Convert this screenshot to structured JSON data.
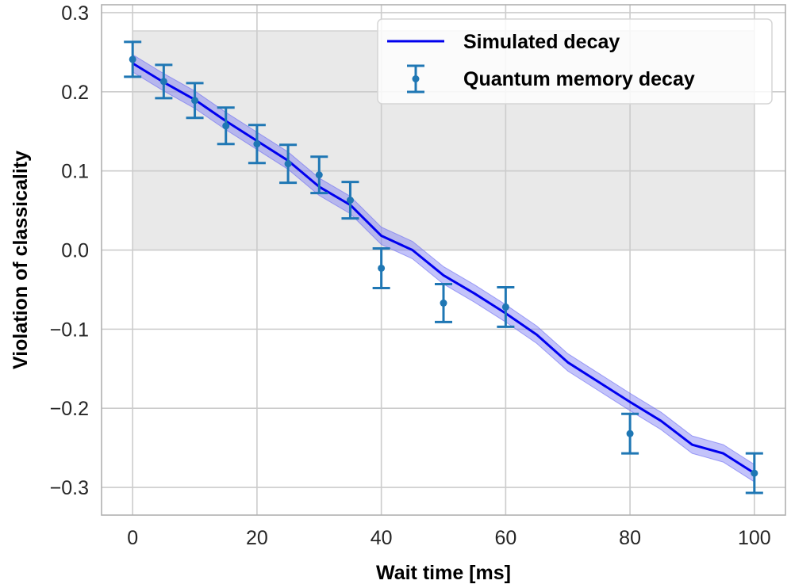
{
  "chart_data": {
    "type": "line",
    "xlabel": "Wait time [ms]",
    "ylabel": "Violation of classicality",
    "xlim": [
      -5,
      105
    ],
    "ylim": [
      -0.335,
      0.31
    ],
    "xticks": [
      0,
      20,
      40,
      60,
      80,
      100
    ],
    "xtick_labels": [
      "0",
      "20",
      "40",
      "60",
      "80",
      "100"
    ],
    "yticks": [
      0.3,
      0.2,
      0.1,
      0.0,
      -0.1,
      -0.2,
      -0.3
    ],
    "ytick_labels": [
      "0.3",
      "0.2",
      "0.1",
      "0.0",
      "−0.1",
      "−0.2",
      "−0.3"
    ],
    "grid": true,
    "legend_position": "top-right",
    "shaded_region": {
      "x": [
        0,
        100
      ],
      "y": [
        0.0,
        0.277
      ]
    },
    "series": [
      {
        "name": "Simulated decay",
        "kind": "line",
        "x": [
          0,
          5,
          10,
          15,
          20,
          25,
          30,
          35,
          40,
          45,
          50,
          55,
          60,
          65,
          70,
          75,
          80,
          85,
          90,
          95,
          100
        ],
        "y": [
          0.236,
          0.212,
          0.19,
          0.163,
          0.138,
          0.113,
          0.08,
          0.057,
          0.018,
          0.0,
          -0.032,
          -0.055,
          -0.08,
          -0.107,
          -0.142,
          -0.167,
          -0.192,
          -0.216,
          -0.246,
          -0.257,
          -0.282
        ],
        "band_half_width": 0.011
      },
      {
        "name": "Quantum memory decay",
        "kind": "errorbar",
        "x": [
          0,
          5,
          10,
          15,
          20,
          25,
          30,
          35,
          40,
          50,
          60,
          80,
          100
        ],
        "y": [
          0.241,
          0.213,
          0.189,
          0.157,
          0.134,
          0.109,
          0.095,
          0.063,
          -0.023,
          -0.067,
          -0.072,
          -0.232,
          -0.282
        ],
        "yerr": [
          0.022,
          0.021,
          0.022,
          0.023,
          0.024,
          0.024,
          0.023,
          0.023,
          0.025,
          0.024,
          0.025,
          0.025,
          0.025
        ]
      }
    ],
    "colors": {
      "line": "#0000ee",
      "band": "#6a6af2",
      "markers": "#1f77b4",
      "shade": "#e9e9e9",
      "grid": "#cccccc",
      "axes": "#b0b0b0"
    }
  }
}
